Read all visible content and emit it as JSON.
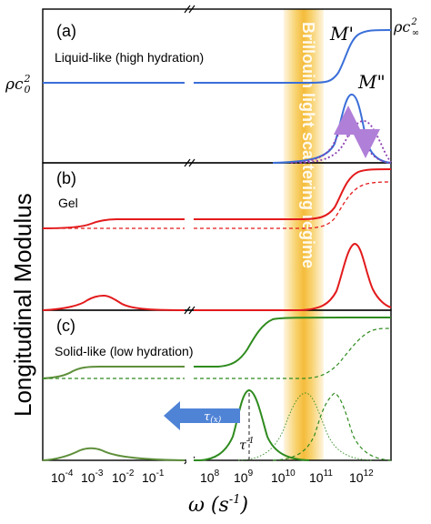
{
  "figure": {
    "ylabel": "Longitudinal Modulus",
    "xlabel": "ω (s",
    "xlabel_sup": "-1",
    "xlabel_close": ")",
    "band_label": "Brillouin light scattering regime",
    "x_ticks": [
      {
        "base": "10",
        "exp": "-4"
      },
      {
        "base": "10",
        "exp": "-3"
      },
      {
        "base": "10",
        "exp": "-2"
      },
      {
        "base": "10",
        "exp": "-1"
      },
      {
        "base": "10",
        "exp": "8"
      },
      {
        "base": "10",
        "exp": "9"
      },
      {
        "base": "10",
        "exp": "10"
      },
      {
        "base": "10",
        "exp": "11"
      },
      {
        "base": "10",
        "exp": "12"
      }
    ],
    "panels": {
      "a": {
        "tag": "(a)",
        "label": "Liquid-like (high hydration)",
        "storage": "M'",
        "loss": "M\"",
        "rho0": "ρc",
        "rho0_sub": "0",
        "rho0_sup": "2",
        "rhoinf": "ρc",
        "rhoinf_sub": "∞",
        "rhoinf_sup": "2"
      },
      "b": {
        "tag": "(b)",
        "label": "Gel"
      },
      "c": {
        "tag": "(c)",
        "label": "Solid-like (low hydration)",
        "tau_arrow": "τ",
        "tau_arrow_sub": "(x)",
        "tau_inv": "τ",
        "tau_inv_sup": "-1"
      }
    },
    "colors": {
      "a": "#3a6fd8",
      "b": "#e31a1c",
      "c": "#2e8b1e",
      "c_early": "#5e8f3a",
      "purple": "#8a3fb0",
      "band": "#f6c340",
      "arrow": "#4f83d6"
    }
  }
}
